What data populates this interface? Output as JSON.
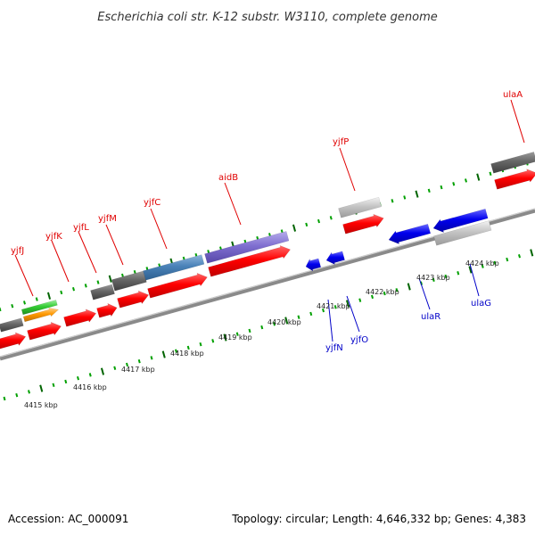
{
  "title": "Escherichia coli str. K-12 substr. W3110, complete genome",
  "footer": {
    "accession": "Accession: AC_000091",
    "summary": "Topology: circular; Length: 4,646,332 bp; Genes: 4,383"
  },
  "scale_labels": [
    "4415 kbp",
    "4416 kbp",
    "4417 kbp",
    "4418 kbp",
    "4419 kbp",
    "4420 kbp",
    "4421 kbp",
    "4422 kbp",
    "4423 kbp",
    "4424 kbp"
  ],
  "genes_forward": [
    "yjfJ",
    "yjfK",
    "yjfL",
    "yjfM",
    "yjfC",
    "aidB",
    "yjfP",
    "ulaA"
  ],
  "genes_reverse": [
    "yjfN",
    "yjfO",
    "ulaR",
    "ulaG"
  ],
  "colors": {
    "forward_label": "#e00000",
    "reverse_label": "#0000c8",
    "cds": "#ff0000",
    "reverse_cds": "#0000ee",
    "gene": "#6a6a6a",
    "grey_feature": "#bdbdbd",
    "green_feature": "#33cc33",
    "orange_feature": "#ff9900",
    "steel_feature": "#4a82b8",
    "purple_feature": "#7f6fd0",
    "tick_major": "#006400",
    "tick_minor": "#00a000",
    "backbone": "#8a8a8a"
  }
}
